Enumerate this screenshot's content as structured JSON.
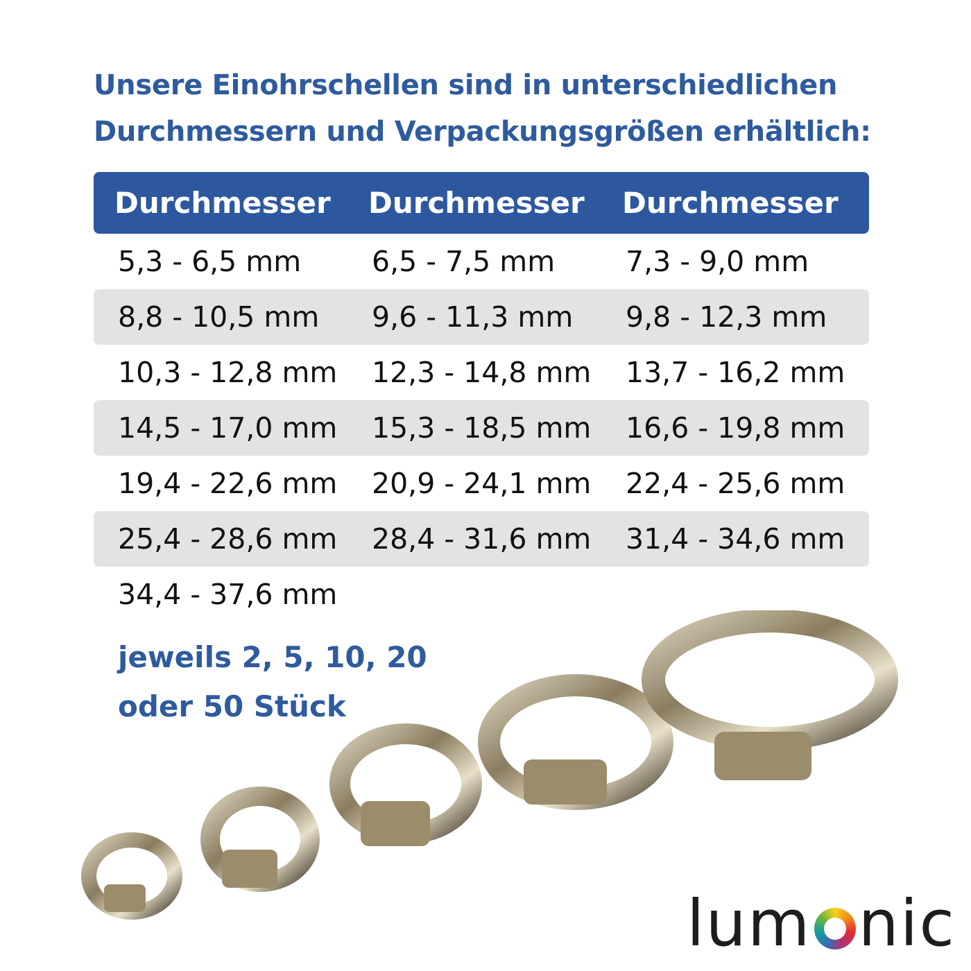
{
  "heading": {
    "line1": "Unsere Einohrschellen sind in unterschiedlichen",
    "line2": "Durchmessern und Verpackungsgrößen erhältlich:"
  },
  "table": {
    "headers": [
      "Durchmesser",
      "Durchmesser",
      "Durchmesser"
    ],
    "rows": [
      [
        "5,3 - 6,5 mm",
        "6,5 - 7,5 mm",
        "7,3 - 9,0 mm"
      ],
      [
        "8,8 - 10,5 mm",
        "9,6 - 11,3 mm",
        "9,8 - 12,3 mm"
      ],
      [
        "10,3 - 12,8 mm",
        "12,3 - 14,8 mm",
        "13,7 - 16,2 mm"
      ],
      [
        "14,5 - 17,0 mm",
        "15,3 - 18,5 mm",
        "16,6 - 19,8 mm"
      ],
      [
        "19,4 - 22,6 mm",
        "20,9 - 24,1 mm",
        "22,4 - 25,6 mm"
      ],
      [
        "25,4 - 28,6 mm",
        "28,4 - 31,6 mm",
        "31,4 - 34,6 mm"
      ],
      [
        "34,4 - 37,6 mm",
        "",
        ""
      ]
    ]
  },
  "note": {
    "line1": "jeweils 2, 5, 10, 20",
    "line2": "oder 50 Stück"
  },
  "logo": {
    "text": "lumOnic",
    "part1": "lum",
    "part2": "nic"
  },
  "colors": {
    "accent": "#2d58a0",
    "row_alt": "#e3e3e3",
    "text": "#111111"
  }
}
